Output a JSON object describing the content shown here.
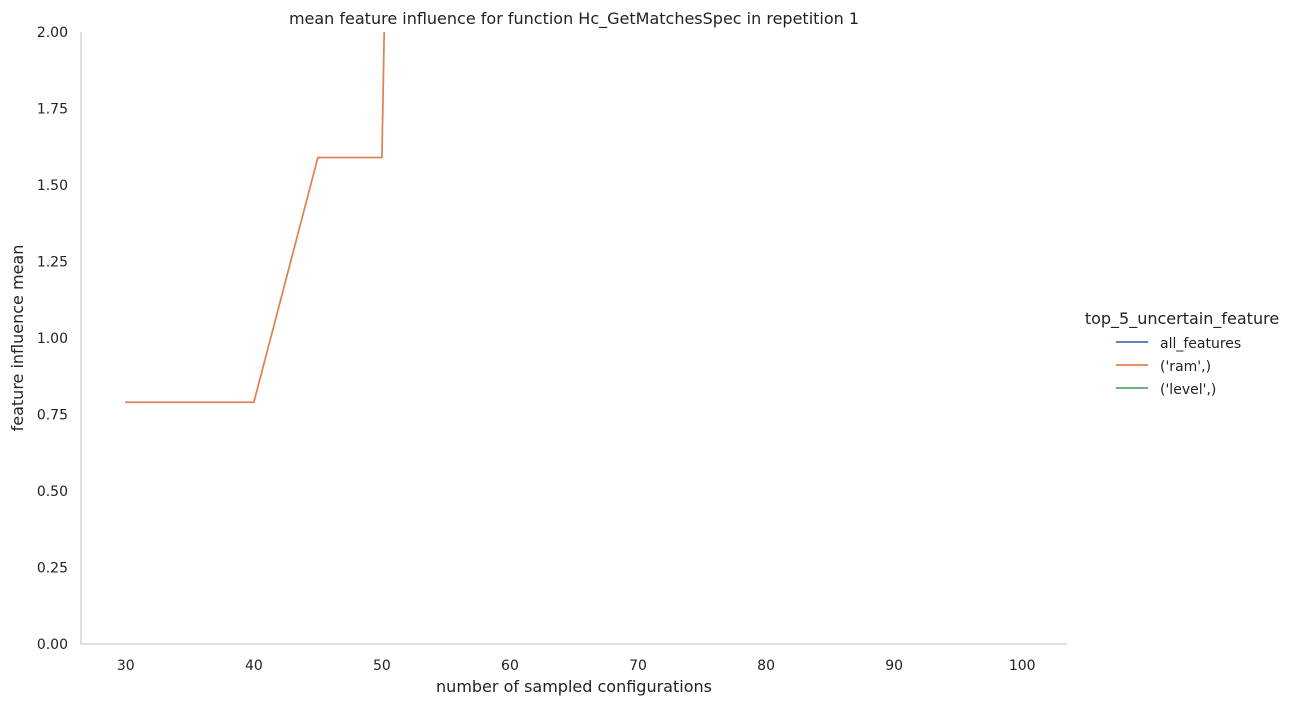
{
  "chart_data": {
    "type": "line",
    "title": "mean feature influence for function Hc_GetMatchesSpec in repetition 1",
    "xlabel": "number of sampled configurations",
    "ylabel": "feature influence mean",
    "xlim": [
      26.5,
      103.5
    ],
    "ylim": [
      0,
      2.0
    ],
    "xticks": [
      30,
      40,
      50,
      60,
      70,
      80,
      90,
      100
    ],
    "yticks": [
      0.0,
      0.25,
      0.5,
      0.75,
      1.0,
      1.25,
      1.5,
      1.75,
      2.0
    ],
    "xtick_labels": [
      "30",
      "40",
      "50",
      "60",
      "70",
      "80",
      "90",
      "100"
    ],
    "ytick_labels": [
      "0.00",
      "0.25",
      "0.50",
      "0.75",
      "1.00",
      "1.25",
      "1.50",
      "1.75",
      "2.00"
    ],
    "grid": false,
    "legend": {
      "title": "top_5_uncertain_feature",
      "placement": "right"
    },
    "series": [
      {
        "name": "all_features",
        "color": "#4c72b0",
        "x": [],
        "y": []
      },
      {
        "name": "('ram',)",
        "color": "#dd8452",
        "x": [
          30,
          35,
          40,
          45,
          50,
          50.2
        ],
        "y": [
          0.79,
          0.79,
          0.79,
          1.59,
          1.59,
          2.05
        ]
      },
      {
        "name": "('level',)",
        "color": "#55a868",
        "x": [],
        "y": []
      }
    ]
  }
}
